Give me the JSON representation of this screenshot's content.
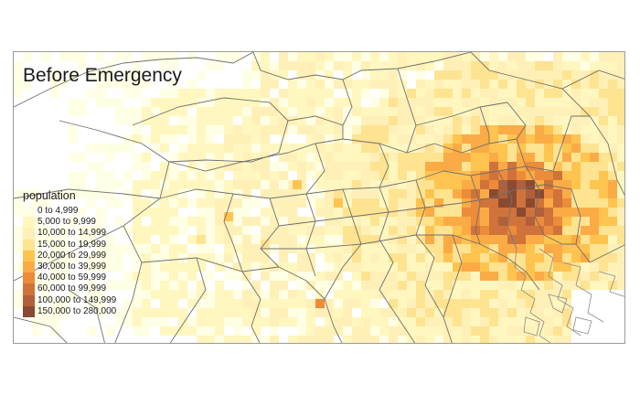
{
  "map": {
    "title": "Before Emergency",
    "legend": {
      "title": "population",
      "classes": [
        {
          "label": "0 to 4,999",
          "color": "#ffffe5"
        },
        {
          "label": "5,000 to 9,999",
          "color": "#fff7bf"
        },
        {
          "label": "10,000 to 14,999",
          "color": "#fff0b8"
        },
        {
          "label": "15,000 to 19,999",
          "color": "#fee391"
        },
        {
          "label": "20,000 to 29,999",
          "color": "#fec44f"
        },
        {
          "label": "30,000 to 39,999",
          "color": "#fbab45"
        },
        {
          "label": "40,000 to 59,999",
          "color": "#ec8b3a"
        },
        {
          "label": "60,000 to 99,999",
          "color": "#d0733a"
        },
        {
          "label": "100,000 to 149,999",
          "color": "#b0603a"
        },
        {
          "label": "150,000 to 280,000",
          "color": "#8a4a32"
        }
      ]
    },
    "boundary_color": "#6f6f6f",
    "coastline_color": "#8a8a8a"
  }
}
